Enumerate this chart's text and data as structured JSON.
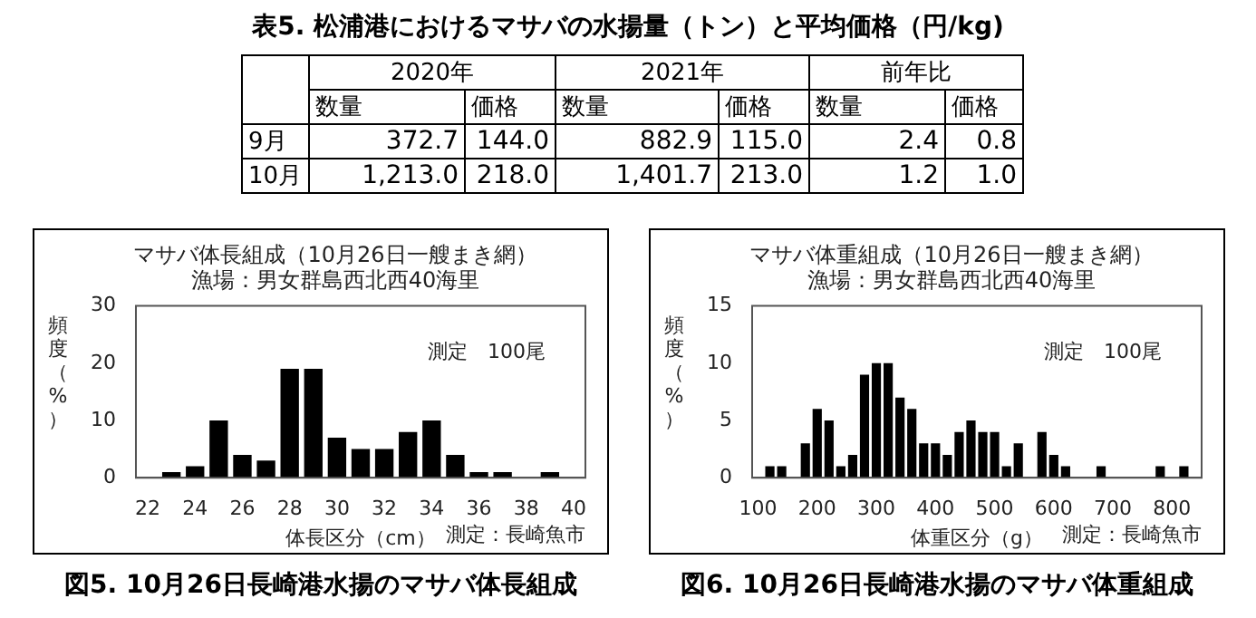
{
  "chart_data": [
    {
      "type": "other",
      "title": "表5. 松浦港におけるマサバの水揚量（トン）と平均価格（円/kg)",
      "annotations": [
        "2020年",
        "2021年",
        "前年比"
      ],
      "categories": [
        "数量",
        "価格",
        "数量",
        "価格",
        "数量",
        "価格"
      ],
      "y_categories": [
        "9月",
        "10月"
      ],
      "cell_labels": [
        [
          "372.7",
          "144.0",
          "882.9",
          "115.0",
          "2.4",
          "0.8"
        ],
        [
          "1,213.0",
          "218.0",
          "1,401.7",
          "213.0",
          "1.2",
          "1.0"
        ]
      ]
    },
    {
      "type": "bar",
      "title": "マサバ体長組成（10月26日一艘まき網）",
      "subtitle": "漁場：男女群島西北西40海里",
      "xlabel": "体長区分（cm）",
      "ylabel": "頻度（%）",
      "annotations": [
        "測定　100尾",
        "測定：長崎魚市",
        "図5. 10月26日長崎港水揚のマサバ体長組成"
      ],
      "categories": [
        "22",
        null,
        "24",
        null,
        "26",
        null,
        "28",
        null,
        "30",
        null,
        "32",
        null,
        "34",
        null,
        "36",
        null,
        "38",
        null,
        "40"
      ],
      "values": [
        0,
        1,
        2,
        10,
        4,
        3,
        19,
        19,
        7,
        5,
        5,
        8,
        10,
        4,
        1,
        1,
        0,
        1,
        0
      ],
      "color": "#000000",
      "ylim": [
        0,
        30
      ],
      "yticks": [
        0,
        10,
        20,
        30
      ]
    },
    {
      "type": "bar",
      "title": "マサバ体重組成（10月26日一艘まき網）",
      "subtitle": "漁場：男女群島西北西40海里",
      "xlabel": "体重区分（g）",
      "ylabel": "頻度（%）",
      "annotations": [
        "測定　100尾",
        "測定：長崎魚市",
        "図6. 10月26日長崎港水揚のマサバ体重組成"
      ],
      "categories": [
        "100",
        null,
        null,
        null,
        null,
        "200",
        null,
        null,
        null,
        null,
        "300",
        null,
        null,
        null,
        null,
        "400",
        null,
        null,
        null,
        null,
        "500",
        null,
        null,
        null,
        null,
        "600",
        null,
        null,
        null,
        null,
        "700",
        null,
        null,
        null,
        null,
        "800",
        null,
        null
      ],
      "values": [
        0,
        1,
        1,
        0,
        3,
        6,
        5,
        1,
        2,
        9,
        10,
        10,
        7,
        6,
        3,
        3,
        2,
        4,
        5,
        4,
        4,
        1,
        3,
        0,
        4,
        2,
        1,
        0,
        0,
        1,
        0,
        0,
        0,
        0,
        1,
        0,
        1,
        0
      ],
      "color": "#000000",
      "ylim": [
        0,
        15
      ],
      "yticks": [
        0,
        5,
        10,
        15
      ]
    }
  ]
}
